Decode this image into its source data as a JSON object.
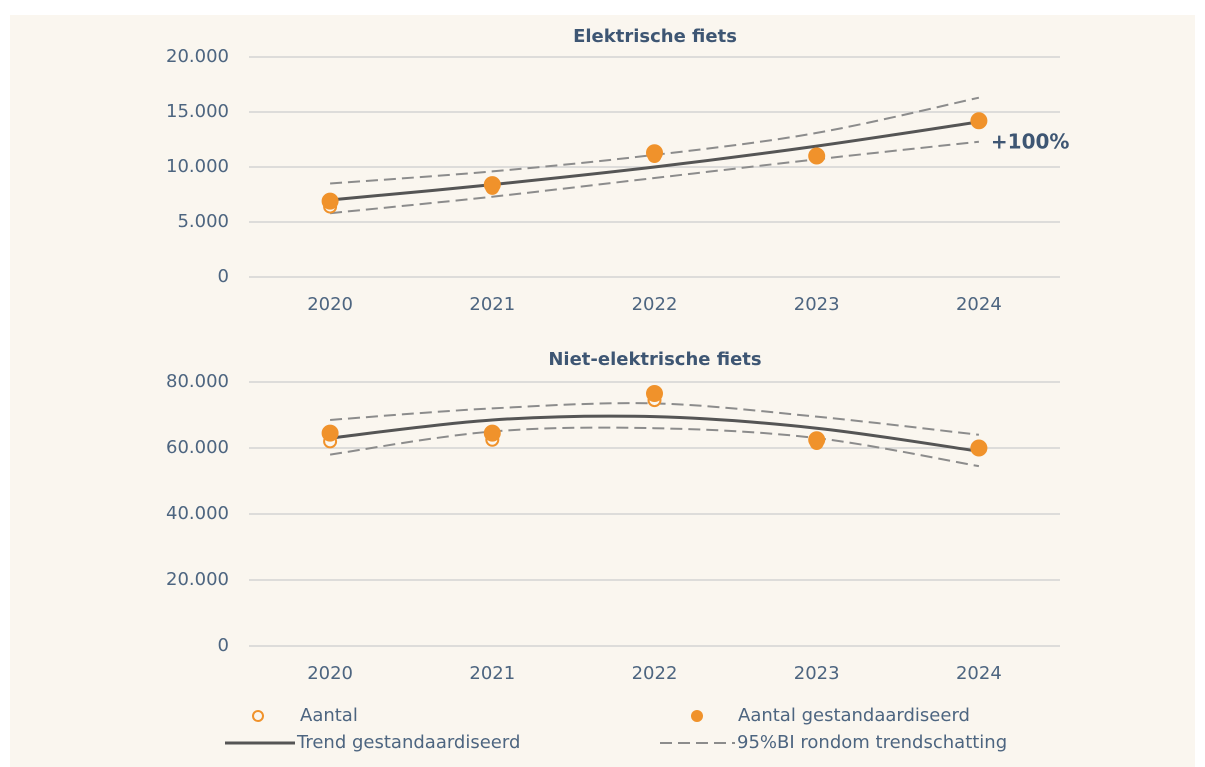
{
  "chart_data": [
    {
      "type": "line",
      "title": "Elektrische fiets",
      "categories": [
        "2020",
        "2021",
        "2022",
        "2023",
        "2024"
      ],
      "ylim": [
        0,
        20000
      ],
      "yticks": [
        0,
        {
          "value": 5000,
          "label": "5.000"
        },
        {
          "value": 10000,
          "label": "10.000"
        },
        {
          "value": 15000,
          "label": "15.000"
        },
        {
          "value": 20000,
          "label": "20.000"
        }
      ],
      "grid": true,
      "annotation": "+100%",
      "series": [
        {
          "name": "Aantal",
          "style": "open-marker",
          "color": "#f0922b",
          "values": [
            6400,
            8100,
            11000,
            11100,
            14200
          ]
        },
        {
          "name": "Aantal gestandaardiseerd",
          "style": "filled-marker",
          "color": "#f0922b",
          "values": [
            6900,
            8400,
            11300,
            11000,
            14200
          ]
        },
        {
          "name": "Trend gestandaardiseerd",
          "style": "solid-line",
          "color": "#555555",
          "values": [
            7000,
            8400,
            10000,
            11900,
            14100
          ]
        },
        {
          "name": "95%BI rondom trendschatting",
          "style": "dashed-band",
          "color": "#8c8c8c",
          "upper": [
            8500,
            9600,
            11100,
            13100,
            16300
          ],
          "lower": [
            5800,
            7300,
            9000,
            10700,
            12300
          ]
        }
      ]
    },
    {
      "type": "line",
      "title": "Niet-elektrische fiets",
      "categories": [
        "2020",
        "2021",
        "2022",
        "2023",
        "2024"
      ],
      "ylim": [
        0,
        80000
      ],
      "yticks": [
        0,
        {
          "value": 20000,
          "label": "20.000"
        },
        {
          "value": 40000,
          "label": "40.000"
        },
        {
          "value": 60000,
          "label": "60.000"
        },
        {
          "value": 80000,
          "label": "80.000"
        }
      ],
      "grid": true,
      "series": [
        {
          "style": "open-marker",
          "color": "#f0922b",
          "values": [
            62000,
            62500,
            74500,
            61500,
            60000
          ]
        },
        {
          "style": "filled-marker",
          "color": "#f0922b",
          "values": [
            64500,
            64500,
            76500,
            62500,
            60000
          ]
        },
        {
          "style": "solid-line",
          "color": "#555555",
          "values": [
            63000,
            68500,
            69500,
            66000,
            59000
          ]
        },
        {
          "style": "dashed-band",
          "color": "#8c8c8c",
          "upper": [
            68500,
            72000,
            73500,
            69500,
            64000
          ],
          "lower": [
            58000,
            65000,
            66000,
            63000,
            54500
          ]
        }
      ]
    }
  ]
}
